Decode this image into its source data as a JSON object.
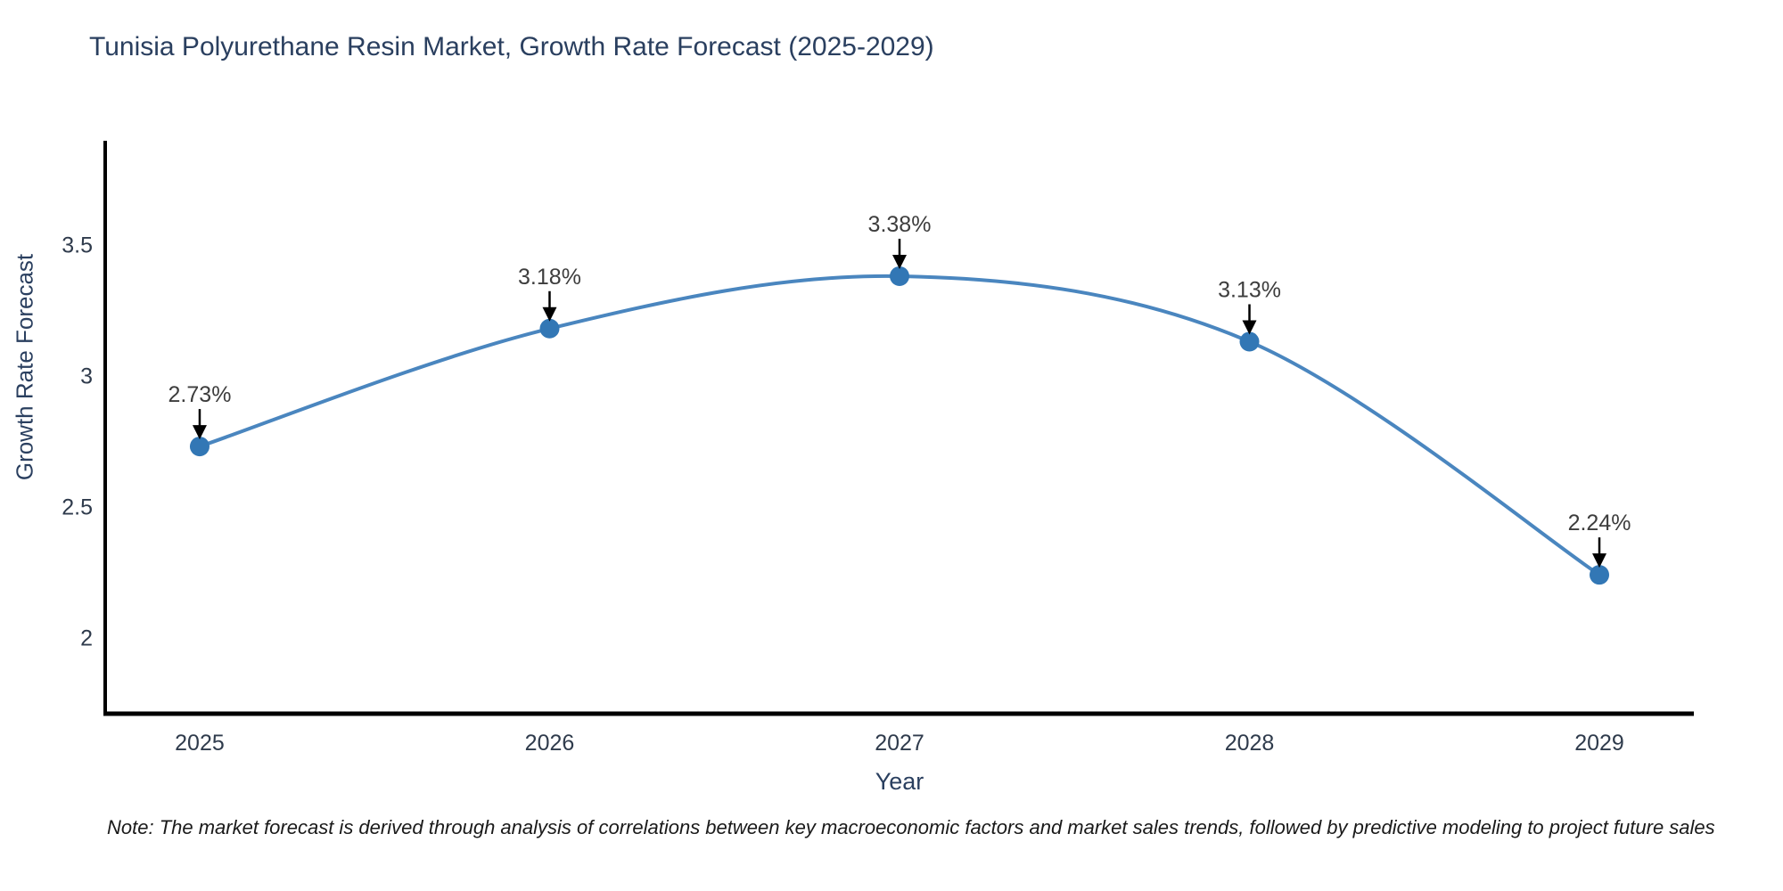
{
  "chart_data": {
    "type": "line",
    "title": "Tunisia Polyurethane Resin Market, Growth Rate Forecast (2025-2029)",
    "xlabel": "Year",
    "ylabel": "Growth Rate Forecast",
    "x": [
      2025,
      2026,
      2027,
      2028,
      2029
    ],
    "series": [
      {
        "name": "Growth Rate Forecast",
        "values": [
          2.73,
          3.18,
          3.38,
          3.13,
          2.24
        ],
        "point_labels": [
          "2.73%",
          "3.18%",
          "3.38%",
          "3.13%",
          "2.24%"
        ]
      }
    ],
    "x_ticks": [
      "2025",
      "2026",
      "2027",
      "2028",
      "2029"
    ],
    "y_ticks": [
      "2",
      "2.5",
      "3",
      "3.5"
    ],
    "y_tick_values": [
      2,
      2.5,
      3,
      3.5
    ],
    "xlim": [
      2024.73,
      2029.27
    ],
    "ylim": [
      1.71,
      3.89
    ],
    "grid": false,
    "legend": false,
    "line_shape": "spline",
    "colors": {
      "line": "#4a86bf",
      "marker": "#3277b5",
      "axis": "#000000",
      "title_text": "#2a3f5f",
      "tick_text": "#2f3b4c",
      "annotation_text": "#3d3d3d",
      "arrow": "#000000",
      "background": "#ffffff"
    }
  },
  "note": "Note: The market forecast is derived through analysis of correlations between key macroeconomic factors and market sales trends, followed by predictive modeling to project future sales"
}
